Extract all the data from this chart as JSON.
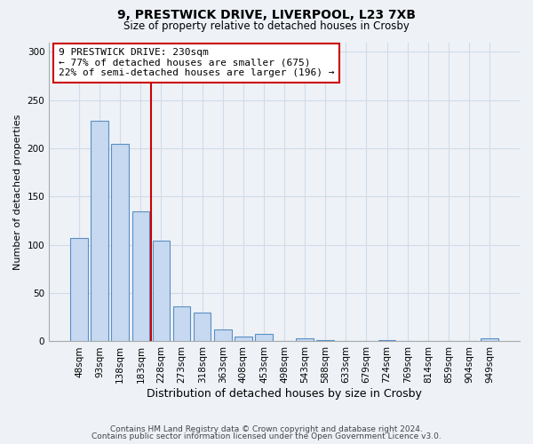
{
  "title_line1": "9, PRESTWICK DRIVE, LIVERPOOL, L23 7XB",
  "title_line2": "Size of property relative to detached houses in Crosby",
  "xlabel": "Distribution of detached houses by size in Crosby",
  "ylabel": "Number of detached properties",
  "categories": [
    "48sqm",
    "93sqm",
    "138sqm",
    "183sqm",
    "228sqm",
    "273sqm",
    "318sqm",
    "363sqm",
    "408sqm",
    "453sqm",
    "498sqm",
    "543sqm",
    "588sqm",
    "633sqm",
    "679sqm",
    "724sqm",
    "769sqm",
    "814sqm",
    "859sqm",
    "904sqm",
    "949sqm"
  ],
  "values": [
    107,
    229,
    205,
    135,
    104,
    36,
    30,
    12,
    5,
    8,
    0,
    3,
    1,
    0,
    0,
    1,
    0,
    0,
    0,
    0,
    3
  ],
  "bar_color": "#c6d9f0",
  "bar_edge_color": "#5a8fc3",
  "annotation_box_text": "9 PRESTWICK DRIVE: 230sqm\n← 77% of detached houses are smaller (675)\n22% of semi-detached houses are larger (196) →",
  "annotation_box_color": "white",
  "annotation_box_edge_color": "#cc0000",
  "vline_between_index": 3,
  "ylim": [
    0,
    310
  ],
  "yticks": [
    0,
    50,
    100,
    150,
    200,
    250,
    300
  ],
  "footer_line1": "Contains HM Land Registry data © Crown copyright and database right 2024.",
  "footer_line2": "Contains public sector information licensed under the Open Government Licence v3.0.",
  "grid_color": "#d0dce8",
  "background_color": "#eef2f7"
}
